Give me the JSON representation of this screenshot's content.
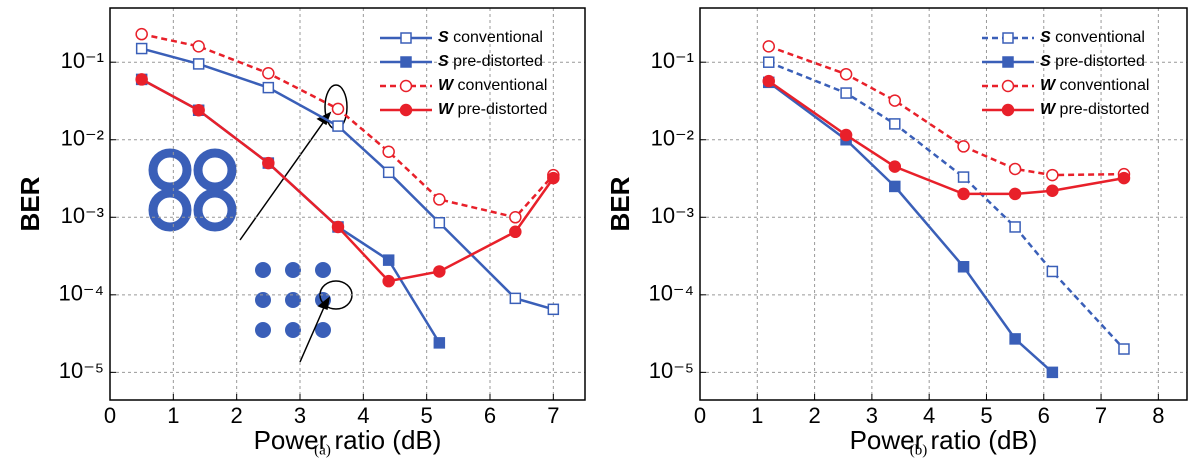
{
  "chart_data": [
    {
      "type": "line",
      "caption": "(a)",
      "x_label": "Power ratio (dB)",
      "y_label": "BER",
      "log_y": true,
      "grid": true,
      "legend": "upper right",
      "xlim": [
        0,
        7.5
      ],
      "xticks": [
        0,
        1,
        2,
        3,
        4,
        5,
        6,
        7
      ],
      "ylim": [
        4.4e-06,
        0.5
      ],
      "yticks": [
        {
          "value": 0.1,
          "label": "10⁻¹"
        },
        {
          "value": 0.01,
          "label": "10⁻²"
        },
        {
          "value": 0.001,
          "label": "10⁻³"
        },
        {
          "value": 0.0001,
          "label": "10⁻⁴"
        },
        {
          "value": 1e-05,
          "label": "10⁻⁵"
        }
      ],
      "series": [
        {
          "name": "S conventional",
          "color": "#3a5fb8",
          "marker": "square",
          "filled": false,
          "dashed": false,
          "x": [
            0.5,
            1.4,
            2.5,
            3.6,
            4.4,
            5.2,
            6.4,
            7.0
          ],
          "values": [
            0.15,
            0.095,
            0.047,
            0.015,
            0.0038,
            0.00085,
            9e-05,
            6.5e-05
          ]
        },
        {
          "name": "S pre-distorted",
          "color": "#3a5fb8",
          "marker": "square",
          "filled": true,
          "dashed": false,
          "x": [
            0.5,
            1.4,
            2.5,
            3.6,
            4.4,
            5.2
          ],
          "values": [
            0.06,
            0.024,
            0.005,
            0.00075,
            0.00028,
            2.4e-05
          ]
        },
        {
          "name": "W conventional",
          "color": "#e8202a",
          "marker": "circle",
          "filled": false,
          "dashed": true,
          "x": [
            0.5,
            1.4,
            2.5,
            3.6,
            4.4,
            5.2,
            6.4,
            7.0
          ],
          "values": [
            0.23,
            0.16,
            0.072,
            0.025,
            0.007,
            0.0017,
            0.001,
            0.0035
          ]
        },
        {
          "name": "W pre-distorted",
          "color": "#e8202a",
          "marker": "circle",
          "filled": true,
          "dashed": false,
          "x": [
            0.5,
            1.4,
            2.5,
            3.6,
            4.4,
            5.2,
            6.4,
            7.0
          ],
          "values": [
            0.06,
            0.024,
            0.005,
            0.00075,
            0.00015,
            0.0002,
            0.00065,
            0.0032
          ]
        }
      ]
    },
    {
      "type": "line",
      "caption": "(b)",
      "x_label": "Power ratio (dB)",
      "y_label": "BER",
      "log_y": true,
      "grid": true,
      "legend": "upper right",
      "xlim": [
        0,
        8.5
      ],
      "xticks": [
        0,
        1,
        2,
        3,
        4,
        5,
        6,
        7,
        8
      ],
      "ylim": [
        4.4e-06,
        0.5
      ],
      "yticks": [
        {
          "value": 0.1,
          "label": "10⁻¹"
        },
        {
          "value": 0.01,
          "label": "10⁻²"
        },
        {
          "value": 0.001,
          "label": "10⁻³"
        },
        {
          "value": 0.0001,
          "label": "10⁻⁴"
        },
        {
          "value": 1e-05,
          "label": "10⁻⁵"
        }
      ],
      "series": [
        {
          "name": "S conventional",
          "color": "#3a5fb8",
          "marker": "square",
          "filled": false,
          "dashed": true,
          "x": [
            1.2,
            2.55,
            3.4,
            4.6,
            5.5,
            6.15,
            7.4
          ],
          "values": [
            0.1,
            0.04,
            0.016,
            0.0033,
            0.00075,
            0.0002,
            2e-05
          ]
        },
        {
          "name": "S pre-distorted",
          "color": "#3a5fb8",
          "marker": "square",
          "filled": true,
          "dashed": false,
          "x": [
            1.2,
            2.55,
            3.4,
            4.6,
            5.5,
            6.15
          ],
          "values": [
            0.055,
            0.01,
            0.0025,
            0.00023,
            2.7e-05,
            1e-05
          ]
        },
        {
          "name": "W conventional",
          "color": "#e8202a",
          "marker": "circle",
          "filled": false,
          "dashed": true,
          "x": [
            1.2,
            2.55,
            3.4,
            4.6,
            5.5,
            6.15,
            7.4
          ],
          "values": [
            0.16,
            0.07,
            0.032,
            0.0082,
            0.0042,
            0.0035,
            0.0036
          ]
        },
        {
          "name": "W pre-distorted",
          "color": "#e8202a",
          "marker": "circle",
          "filled": true,
          "dashed": false,
          "x": [
            1.2,
            2.55,
            3.4,
            4.6,
            5.5,
            6.15,
            7.4
          ],
          "values": [
            0.057,
            0.0115,
            0.0045,
            0.002,
            0.002,
            0.0022,
            0.0032
          ]
        }
      ]
    }
  ]
}
